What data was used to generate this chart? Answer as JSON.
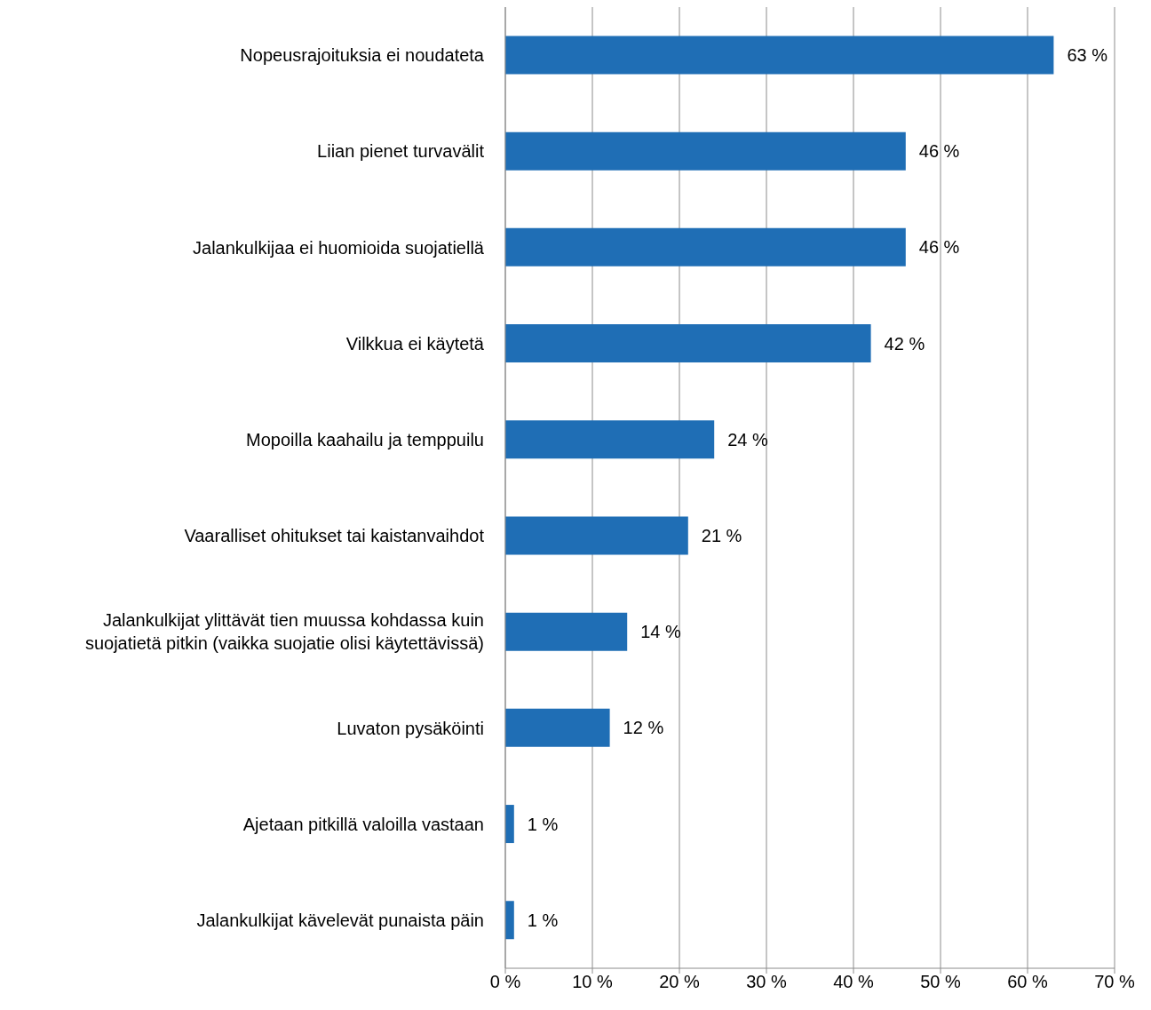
{
  "chart_data": {
    "type": "bar",
    "orientation": "horizontal",
    "categories": [
      "Nopeusrajoituksia ei noudateta",
      "Liian pienet turvavälit",
      "Jalankulkijaa ei huomioida suojatiellä",
      "Vilkkua ei käytetä",
      "Mopoilla kaahailu ja temppuilu",
      "Vaaralliset ohitukset tai kaistanvaihdot",
      "Jalankulkijat ylittävät tien muussa kohdassa kuin suojatietä pitkin (vaikka suojatie olisi käytettävissä)",
      "Luvaton pysäköinti",
      "Ajetaan pitkillä valoilla vastaan",
      "Jalankulkijat kävelevät punaista päin"
    ],
    "values": [
      63,
      46,
      46,
      42,
      24,
      21,
      14,
      12,
      1,
      1
    ],
    "value_labels": [
      "63 %",
      "46 %",
      "46 %",
      "42 %",
      "24 %",
      "21 %",
      "14 %",
      "12 %",
      "1 %",
      "1 %"
    ],
    "color": "#1f6eb5",
    "xlim": [
      0,
      70
    ],
    "xticks": [
      {
        "value": 0,
        "label": "0 %"
      },
      {
        "value": 10,
        "label": "10 %"
      },
      {
        "value": 20,
        "label": "20 %"
      },
      {
        "value": 30,
        "label": "30 %"
      },
      {
        "value": 40,
        "label": "40 %"
      },
      {
        "value": 50,
        "label": "50 %"
      },
      {
        "value": 60,
        "label": "60 %"
      },
      {
        "value": 70,
        "label": "70 %"
      }
    ],
    "grid": "x",
    "legend": false
  }
}
